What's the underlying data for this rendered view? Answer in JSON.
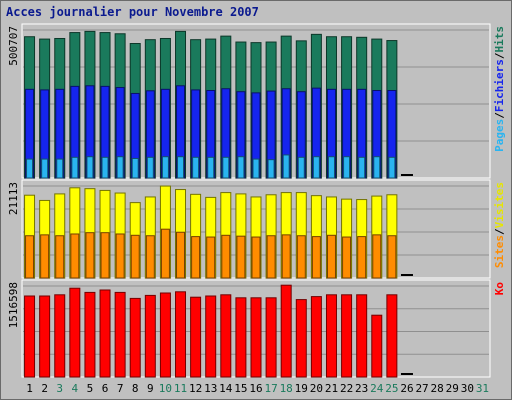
{
  "title": "Acces journalier pour Novembre 2007",
  "chart_data": [
    {
      "type": "bar",
      "panel": "top",
      "categories": [
        "1",
        "2",
        "3",
        "4",
        "5",
        "6",
        "7",
        "8",
        "9",
        "10",
        "11",
        "12",
        "13",
        "14",
        "15",
        "16",
        "17",
        "18",
        "19",
        "20",
        "21",
        "22",
        "23",
        "24",
        "25",
        "26",
        "27",
        "28",
        "29",
        "30",
        "31"
      ],
      "ytick": "500707",
      "ylim": [
        0,
        500707
      ],
      "series": [
        {
          "name": "Hits",
          "color": "#1a7a5c",
          "values": [
            478000,
            470000,
            472000,
            492000,
            496000,
            492000,
            488000,
            455000,
            468000,
            472000,
            496000,
            468000,
            470000,
            480000,
            460000,
            458000,
            460000,
            480000,
            464000,
            486000,
            478000,
            478000,
            476000,
            470000,
            465000,
            0,
            0,
            0,
            0,
            0,
            0
          ]
        },
        {
          "name": "Fichiers",
          "color": "#1525ee",
          "values": [
            300000,
            298000,
            300000,
            310000,
            312000,
            310000,
            306000,
            286000,
            295000,
            300000,
            312000,
            298000,
            296000,
            302000,
            292000,
            288000,
            294000,
            302000,
            292000,
            304000,
            300000,
            300000,
            300000,
            296000,
            296000,
            0,
            0,
            0,
            0,
            0,
            0
          ]
        },
        {
          "name": "Pages",
          "color": "#2ab4f0",
          "values": [
            64000,
            64000,
            64000,
            70000,
            72000,
            70000,
            72000,
            66000,
            70000,
            72000,
            72000,
            70000,
            70000,
            70000,
            72000,
            64000,
            62000,
            78000,
            70000,
            72000,
            72000,
            72000,
            70000,
            72000,
            70000,
            0,
            0,
            0,
            0,
            0,
            0
          ]
        }
      ],
      "legend": [
        "Pages",
        "Fichiers",
        "Hits"
      ]
    },
    {
      "type": "bar",
      "panel": "middle",
      "categories": [
        "1",
        "2",
        "3",
        "4",
        "5",
        "6",
        "7",
        "8",
        "9",
        "10",
        "11",
        "12",
        "13",
        "14",
        "15",
        "16",
        "17",
        "18",
        "19",
        "20",
        "21",
        "22",
        "23",
        "24",
        "25",
        "26",
        "27",
        "28",
        "29",
        "30",
        "31"
      ],
      "ytick": "21113",
      "ylim": [
        0,
        21113
      ],
      "series": [
        {
          "name": "Visites",
          "color": "#ffff00",
          "values": [
            19000,
            17800,
            19300,
            20700,
            20500,
            20100,
            19500,
            17300,
            18600,
            21100,
            20300,
            19200,
            18500,
            19600,
            19300,
            18600,
            19100,
            19600,
            19600,
            18900,
            18600,
            18100,
            18000,
            18800,
            19100,
            0,
            0,
            0,
            0,
            0,
            0
          ]
        },
        {
          "name": "Sites",
          "color": "#ff8c00",
          "values": [
            9700,
            9900,
            9700,
            10100,
            10400,
            10400,
            10100,
            9800,
            9700,
            11200,
            10500,
            9500,
            9400,
            9800,
            9600,
            9400,
            9700,
            9900,
            9700,
            9500,
            9800,
            9400,
            9500,
            9900,
            9700,
            0,
            0,
            0,
            0,
            0,
            0
          ]
        }
      ],
      "legend": [
        "Sites",
        "Visites"
      ]
    },
    {
      "type": "bar",
      "panel": "bottom",
      "categories": [
        "1",
        "2",
        "3",
        "4",
        "5",
        "6",
        "7",
        "8",
        "9",
        "10",
        "11",
        "12",
        "13",
        "14",
        "15",
        "16",
        "17",
        "18",
        "19",
        "20",
        "21",
        "22",
        "23",
        "24",
        "25",
        "26",
        "27",
        "28",
        "29",
        "30",
        "31"
      ],
      "ytick": "1516598",
      "ylim": [
        0,
        1516598
      ],
      "series": [
        {
          "name": "Ko",
          "color": "#ff0000",
          "values": [
            1350000,
            1350000,
            1370000,
            1480000,
            1410000,
            1450000,
            1410000,
            1310000,
            1360000,
            1400000,
            1420000,
            1330000,
            1350000,
            1370000,
            1320000,
            1320000,
            1320000,
            1530000,
            1290000,
            1340000,
            1370000,
            1370000,
            1370000,
            1030000,
            1370000,
            0,
            0,
            0,
            0,
            0,
            0
          ]
        }
      ],
      "legend": [
        "Ko"
      ]
    }
  ],
  "colors": {
    "day_label_weekday": "#000000",
    "day_label_weekend": "#1a7a5c",
    "marker": "#000000",
    "grid": "#8f8f8f"
  },
  "weekend_days": [
    "3",
    "4",
    "10",
    "11",
    "17",
    "18",
    "24",
    "25",
    "31"
  ]
}
